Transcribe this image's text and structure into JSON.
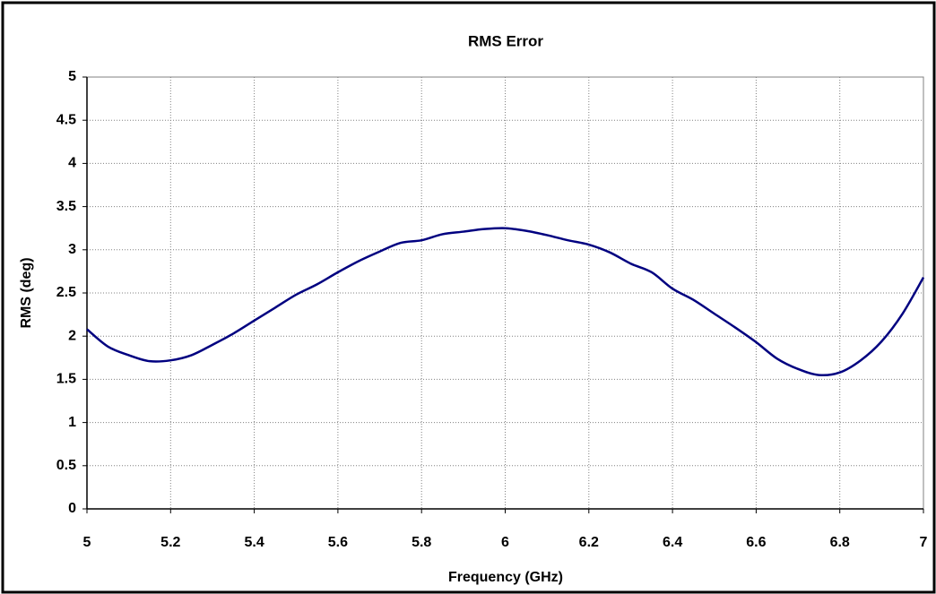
{
  "chart_data": {
    "type": "line",
    "title": "RMS Error",
    "x_label": "Frequency (GHz)",
    "y_label": "RMS (deg)",
    "x": [
      5.0,
      5.05,
      5.1,
      5.15,
      5.2,
      5.25,
      5.3,
      5.35,
      5.4,
      5.45,
      5.5,
      5.55,
      5.6,
      5.65,
      5.7,
      5.75,
      5.8,
      5.85,
      5.9,
      5.95,
      6.0,
      6.05,
      6.1,
      6.15,
      6.2,
      6.25,
      6.3,
      6.35,
      6.4,
      6.45,
      6.5,
      6.55,
      6.6,
      6.65,
      6.7,
      6.75,
      6.8,
      6.85,
      6.9,
      6.95,
      7.0
    ],
    "series": [
      {
        "color": "#000080",
        "values": [
          2.08,
          1.88,
          1.78,
          1.71,
          1.72,
          1.78,
          1.9,
          2.03,
          2.18,
          2.33,
          2.48,
          2.6,
          2.74,
          2.87,
          2.98,
          3.08,
          3.11,
          3.18,
          3.21,
          3.24,
          3.25,
          3.22,
          3.17,
          3.11,
          3.06,
          2.97,
          2.84,
          2.74,
          2.55,
          2.42,
          2.26,
          2.1,
          1.93,
          1.74,
          1.62,
          1.55,
          1.58,
          1.72,
          1.94,
          2.26,
          2.68
        ]
      }
    ],
    "xlim": [
      5,
      7
    ],
    "xticks": [
      5,
      5.2,
      5.4,
      5.6,
      5.8,
      6,
      6.2,
      6.4,
      6.6,
      6.8,
      7
    ],
    "ylim": [
      0,
      5
    ],
    "yticks": [
      0,
      0.5,
      1,
      1.5,
      2,
      2.5,
      3,
      3.5,
      4,
      4.5,
      5
    ],
    "grid": true
  }
}
